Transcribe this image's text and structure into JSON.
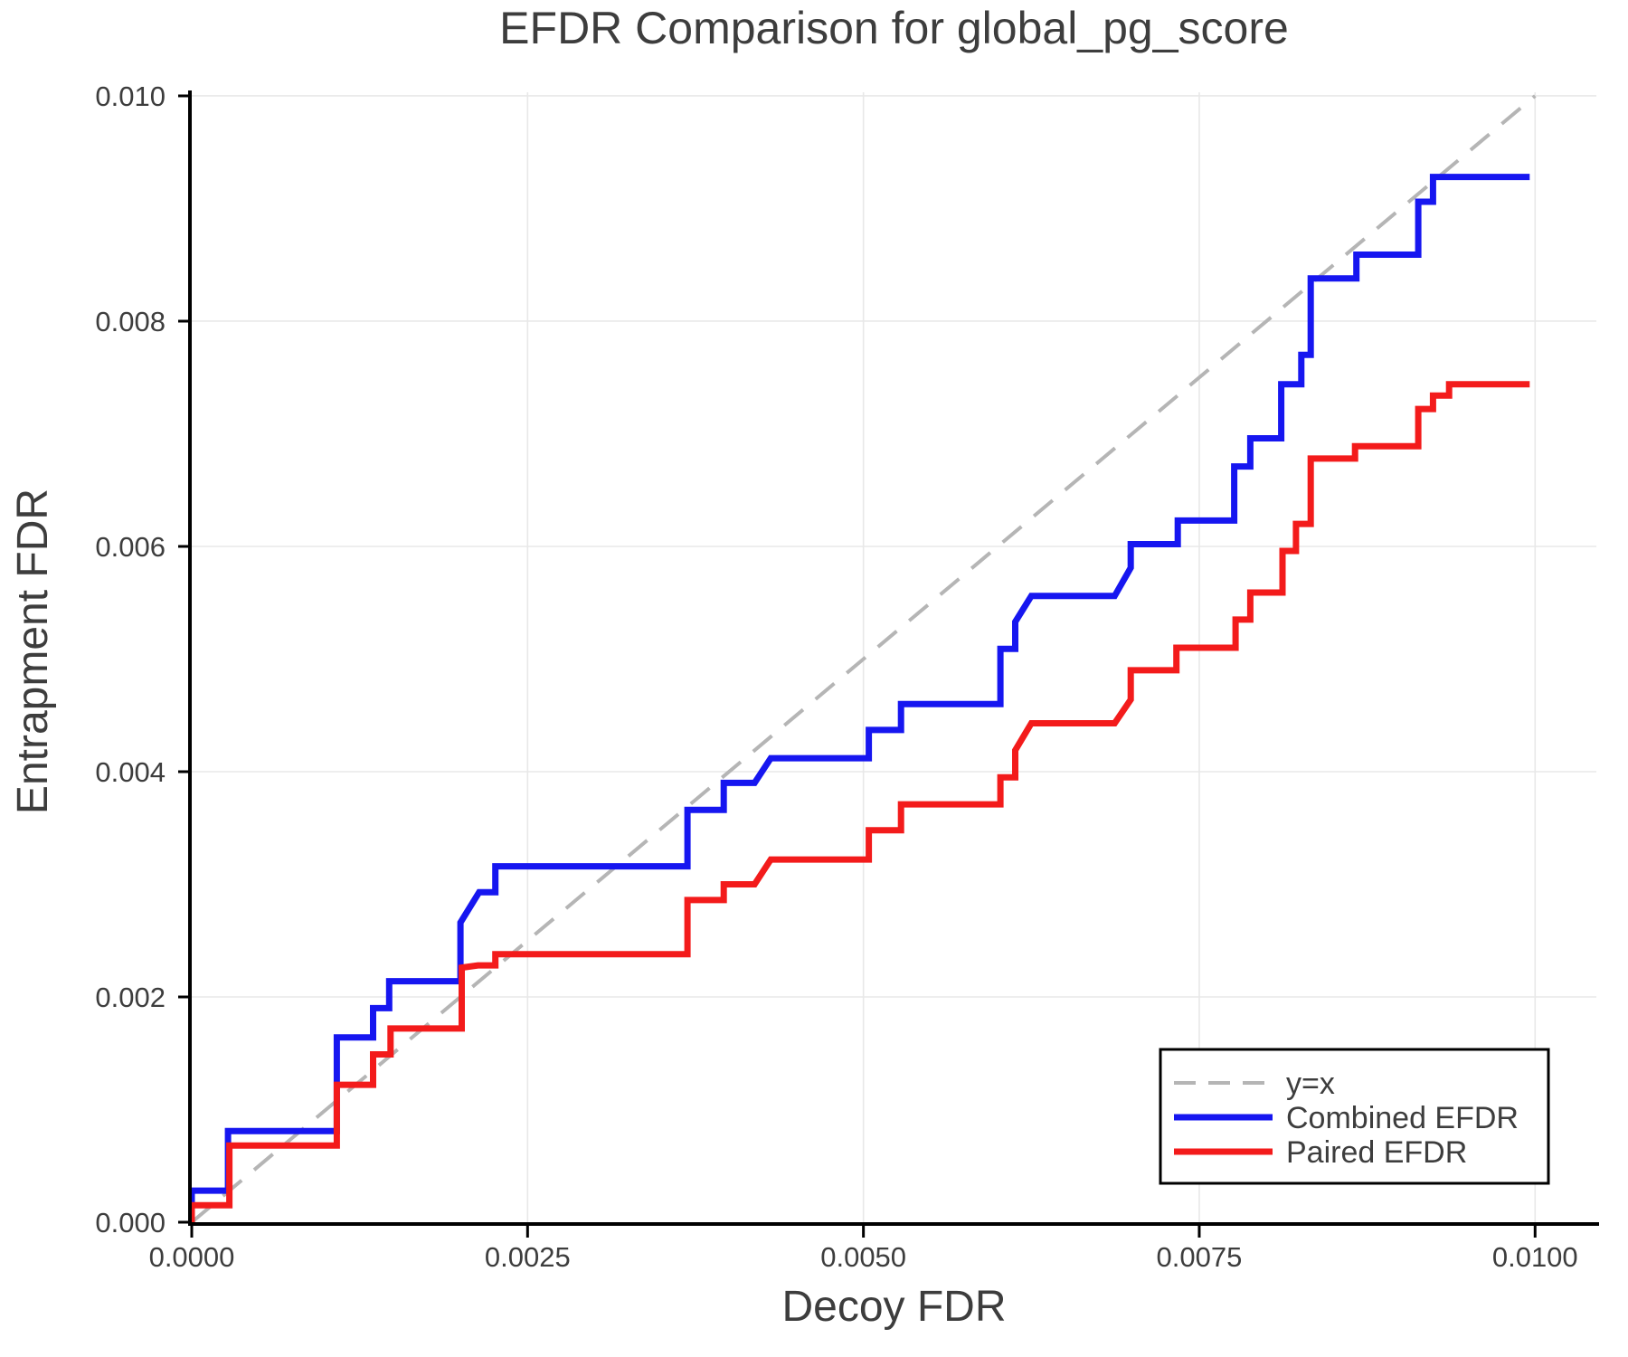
{
  "chart_data": {
    "type": "line",
    "title": "EFDR Comparison for global_pg_score",
    "xlabel": "Decoy FDR",
    "ylabel": "Entrapment FDR",
    "xlim": [
      0,
      0.010456
    ],
    "ylim": [
      0,
      0.010032
    ],
    "grid": true,
    "x_ticks": {
      "values": [
        0,
        0.0025,
        0.005,
        0.0075,
        0.01
      ],
      "labels": [
        "0.0000",
        "0.0025",
        "0.0050",
        "0.0075",
        "0.0100"
      ]
    },
    "y_ticks": {
      "values": [
        0,
        0.002,
        0.004,
        0.006,
        0.008,
        0.01
      ],
      "labels": [
        "0.000",
        "0.002",
        "0.004",
        "0.006",
        "0.008",
        "0.010"
      ]
    },
    "legend": {
      "position": "lower right",
      "entries": [
        "y=x",
        "Combined EFDR",
        "Paired EFDR"
      ]
    },
    "colors": {
      "text": "#3d3d3d",
      "grid": "#e8e8e8",
      "spine": "#000000",
      "legend_border": "#000000",
      "legend_bg": "#ffffff",
      "identity": "#b5b5b5",
      "combined": "#1616f0",
      "paired": "#f31b1b"
    },
    "series": [
      {
        "name": "y=x",
        "color": "#b5b5b5",
        "dash": true,
        "width": 4,
        "points": [
          [
            0,
            0
          ],
          [
            0.01,
            0.01
          ]
        ]
      },
      {
        "name": "Combined EFDR",
        "color": "#1616f0",
        "dash": false,
        "width": 7,
        "points": [
          [
            0.0,
            0.0
          ],
          [
            0.0,
            0.00028
          ],
          [
            0.00027,
            0.00028
          ],
          [
            0.00027,
            0.00081
          ],
          [
            0.00108,
            0.00081
          ],
          [
            0.00108,
            0.00164
          ],
          [
            0.00135,
            0.00164
          ],
          [
            0.00135,
            0.0019
          ],
          [
            0.00147,
            0.0019
          ],
          [
            0.00147,
            0.00214
          ],
          [
            0.002,
            0.00214
          ],
          [
            0.002,
            0.00266
          ],
          [
            0.00214,
            0.00293
          ],
          [
            0.00226,
            0.00293
          ],
          [
            0.00226,
            0.00316
          ],
          [
            0.00369,
            0.00316
          ],
          [
            0.00369,
            0.00366
          ],
          [
            0.00396,
            0.00366
          ],
          [
            0.00396,
            0.0039
          ],
          [
            0.00419,
            0.0039
          ],
          [
            0.00431,
            0.00412
          ],
          [
            0.00504,
            0.00412
          ],
          [
            0.00504,
            0.00437
          ],
          [
            0.00528,
            0.00437
          ],
          [
            0.00528,
            0.0046
          ],
          [
            0.00602,
            0.0046
          ],
          [
            0.00602,
            0.00509
          ],
          [
            0.00613,
            0.00509
          ],
          [
            0.00613,
            0.00533
          ],
          [
            0.00625,
            0.00556
          ],
          [
            0.00687,
            0.00556
          ],
          [
            0.00699,
            0.00581
          ],
          [
            0.00699,
            0.00602
          ],
          [
            0.00734,
            0.00602
          ],
          [
            0.00734,
            0.00623
          ],
          [
            0.00776,
            0.00623
          ],
          [
            0.00776,
            0.00671
          ],
          [
            0.00788,
            0.00671
          ],
          [
            0.00788,
            0.00696
          ],
          [
            0.00811,
            0.00696
          ],
          [
            0.00811,
            0.00744
          ],
          [
            0.00826,
            0.00744
          ],
          [
            0.00826,
            0.0077
          ],
          [
            0.00833,
            0.0077
          ],
          [
            0.00833,
            0.00838
          ],
          [
            0.00867,
            0.00838
          ],
          [
            0.00867,
            0.00859
          ],
          [
            0.00913,
            0.00859
          ],
          [
            0.00913,
            0.00906
          ],
          [
            0.00924,
            0.00906
          ],
          [
            0.00924,
            0.00928
          ],
          [
            0.00996,
            0.00928
          ]
        ]
      },
      {
        "name": "Paired EFDR",
        "color": "#f31b1b",
        "dash": false,
        "width": 7,
        "points": [
          [
            0.0,
            0.0
          ],
          [
            0.0,
            0.00015
          ],
          [
            0.00028,
            0.00015
          ],
          [
            0.00028,
            0.00068
          ],
          [
            0.00108,
            0.00068
          ],
          [
            0.00108,
            0.00122
          ],
          [
            0.00135,
            0.00122
          ],
          [
            0.00135,
            0.00149
          ],
          [
            0.00148,
            0.00149
          ],
          [
            0.00148,
            0.00172
          ],
          [
            0.00201,
            0.00172
          ],
          [
            0.00201,
            0.00226
          ],
          [
            0.00213,
            0.00228
          ],
          [
            0.00226,
            0.00228
          ],
          [
            0.00226,
            0.00238
          ],
          [
            0.00369,
            0.00238
          ],
          [
            0.00369,
            0.00286
          ],
          [
            0.00396,
            0.00286
          ],
          [
            0.00396,
            0.003
          ],
          [
            0.00419,
            0.003
          ],
          [
            0.00431,
            0.00322
          ],
          [
            0.00504,
            0.00322
          ],
          [
            0.00504,
            0.00348
          ],
          [
            0.00528,
            0.00348
          ],
          [
            0.00528,
            0.00371
          ],
          [
            0.00602,
            0.00371
          ],
          [
            0.00602,
            0.00395
          ],
          [
            0.00613,
            0.00395
          ],
          [
            0.00613,
            0.00419
          ],
          [
            0.00625,
            0.00443
          ],
          [
            0.00687,
            0.00443
          ],
          [
            0.00699,
            0.00464
          ],
          [
            0.00699,
            0.0049
          ],
          [
            0.00733,
            0.0049
          ],
          [
            0.00733,
            0.0051
          ],
          [
            0.00777,
            0.0051
          ],
          [
            0.00777,
            0.00535
          ],
          [
            0.00788,
            0.00535
          ],
          [
            0.00788,
            0.00559
          ],
          [
            0.00812,
            0.00559
          ],
          [
            0.00812,
            0.00596
          ],
          [
            0.00822,
            0.00596
          ],
          [
            0.00822,
            0.0062
          ],
          [
            0.00833,
            0.0062
          ],
          [
            0.00833,
            0.00678
          ],
          [
            0.00866,
            0.00678
          ],
          [
            0.00866,
            0.00689
          ],
          [
            0.00913,
            0.00689
          ],
          [
            0.00913,
            0.00722
          ],
          [
            0.00924,
            0.00722
          ],
          [
            0.00924,
            0.00734
          ],
          [
            0.00936,
            0.00734
          ],
          [
            0.00936,
            0.00744
          ],
          [
            0.00996,
            0.00744
          ]
        ]
      }
    ]
  }
}
